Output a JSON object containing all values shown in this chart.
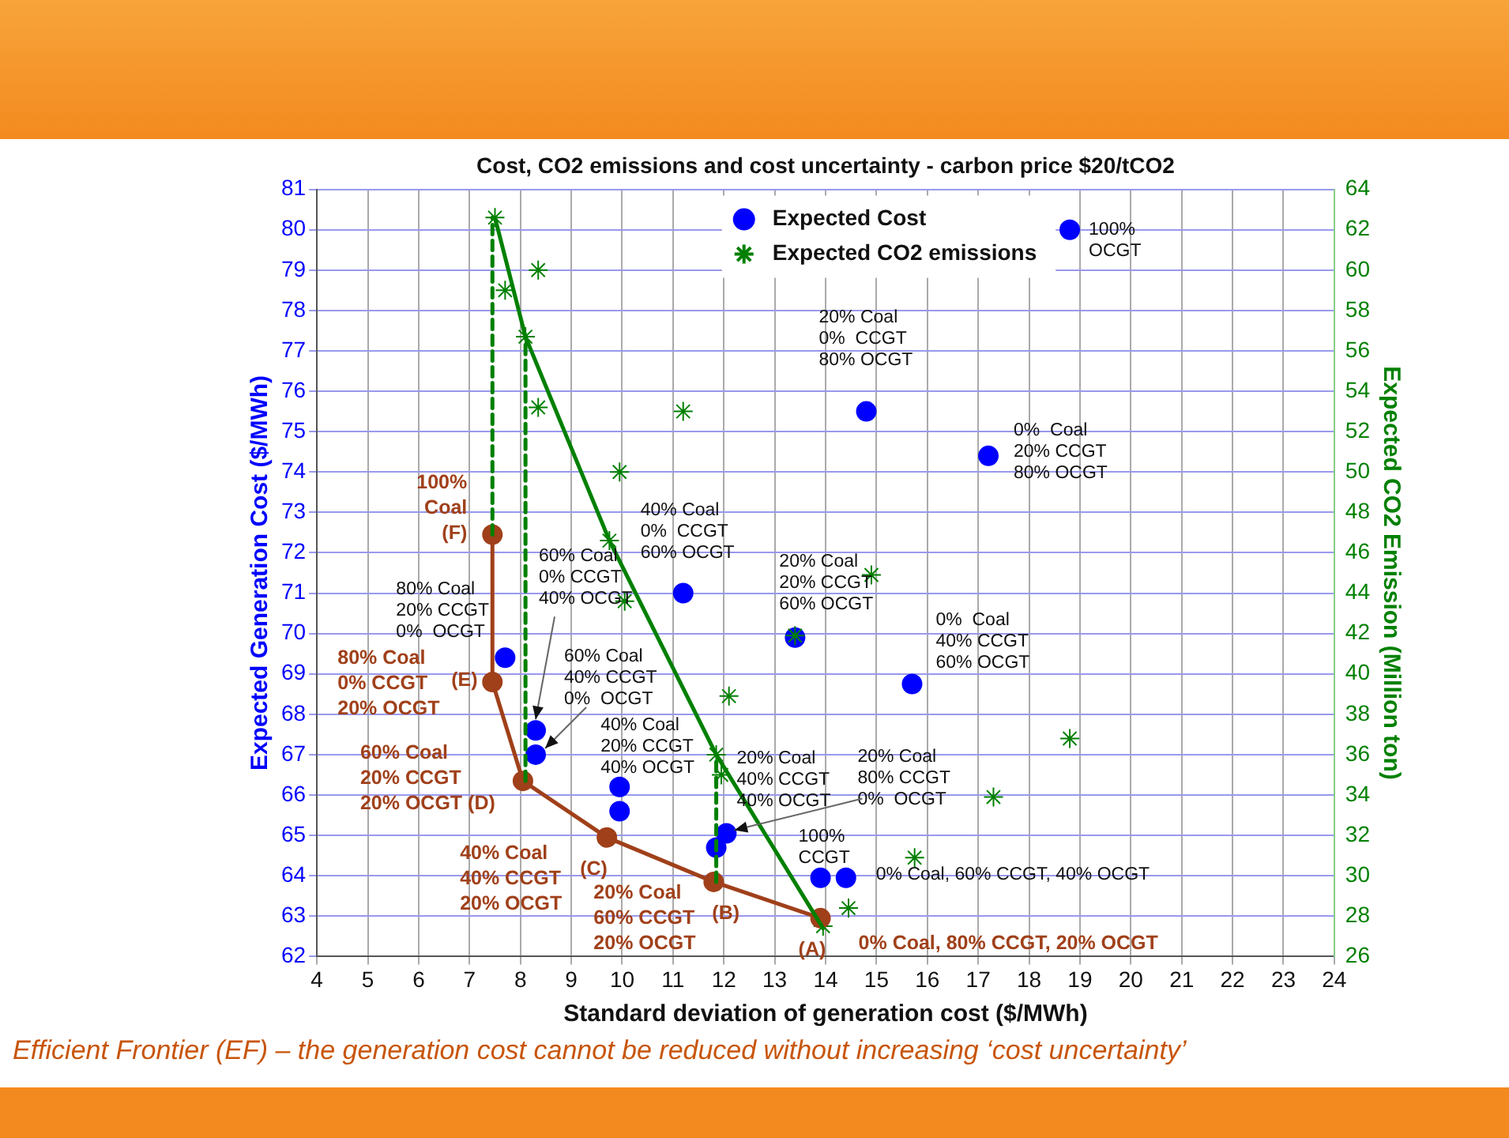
{
  "chart_data": {
    "type": "scatter",
    "title": "Cost, CO2 emissions and cost uncertainty - carbon price $20/tCO2",
    "xlabel": "Standard deviation of generation cost ($/MWh)",
    "ylabel": "Expected Generation Cost ($/MWh)",
    "y2label": "Expected CO2 Emission (Million ton)",
    "xlim": [
      4,
      24
    ],
    "xticks": [
      4,
      5,
      6,
      7,
      8,
      9,
      10,
      11,
      12,
      13,
      14,
      15,
      16,
      17,
      18,
      19,
      20,
      21,
      22,
      23,
      24
    ],
    "ylim": [
      62,
      81
    ],
    "yticks": [
      62,
      63,
      64,
      65,
      66,
      67,
      68,
      69,
      70,
      71,
      72,
      73,
      74,
      75,
      76,
      77,
      78,
      79,
      80,
      81
    ],
    "y2lim": [
      26,
      64
    ],
    "y2ticks": [
      26,
      28,
      30,
      32,
      34,
      36,
      38,
      40,
      42,
      44,
      46,
      48,
      50,
      52,
      54,
      56,
      58,
      60,
      62,
      64
    ],
    "grid": true,
    "legend": "top",
    "series": [
      {
        "name": "Expected Cost",
        "type": "scatter",
        "marker": "circle",
        "color": "#0000ff",
        "x": [
          18.8,
          14.8,
          17.2,
          11.2,
          13.4,
          15.7,
          7.7,
          8.3,
          8.3,
          9.95,
          9.95,
          11.85,
          12.05,
          13.9,
          14.4
        ],
        "values": [
          80.0,
          75.5,
          74.4,
          71.0,
          69.9,
          68.75,
          69.4,
          67.6,
          67.0,
          66.2,
          65.6,
          64.7,
          65.05,
          63.95,
          63.95
        ]
      },
      {
        "name": "Expected CO2 emissions",
        "type": "scatter",
        "marker": "cross",
        "axis": "y2",
        "color": "#008000",
        "x": [
          7.5,
          7.7,
          8.35,
          8.1,
          8.35,
          11.2,
          9.95,
          9.75,
          10.05,
          14.9,
          13.4,
          12.1,
          11.85,
          11.95,
          13.95,
          14.45,
          18.8,
          17.3,
          15.75
        ],
        "values": [
          62.6,
          59.0,
          60.0,
          56.7,
          53.2,
          53.0,
          50.0,
          46.6,
          43.6,
          44.9,
          41.9,
          38.9,
          36.0,
          35.0,
          27.5,
          28.4,
          36.8,
          33.9,
          30.9
        ]
      },
      {
        "type": "line",
        "marker": "circle",
        "color": "#a0401a",
        "x": [
          13.9,
          11.8,
          9.7,
          8.05,
          7.45,
          7.45
        ],
        "values": [
          62.95,
          63.85,
          64.95,
          66.35,
          68.8,
          72.45
        ]
      },
      {
        "type": "line",
        "marker": "none",
        "axis": "y2",
        "color": "#008000",
        "x": [
          7.5,
          8.1,
          9.75,
          11.85,
          13.95
        ],
        "values": [
          62.6,
          56.7,
          46.6,
          36.0,
          27.4
        ]
      },
      {
        "type": "line",
        "marker": "none",
        "line_style": "dashed",
        "axis": "y2",
        "color": "#008000",
        "x": [
          7.45,
          7.45
        ],
        "values": [
          46.9,
          62.6
        ]
      },
      {
        "type": "line",
        "marker": "none",
        "line_style": "dashed",
        "axis": "y2",
        "color": "#008000",
        "x": [
          8.1,
          8.1
        ],
        "values": [
          34.7,
          56.7
        ]
      },
      {
        "type": "line",
        "marker": "none",
        "line_style": "dashed",
        "axis": "y2",
        "color": "#008000",
        "x": [
          11.85,
          11.85
        ],
        "values": [
          29.7,
          36.0
        ]
      }
    ],
    "annotations": [
      {
        "text": "100%\nOCGT",
        "x": 18.8,
        "y": 80.0
      },
      {
        "text": "20% Coal\n0%  CCGT\n80% OCGT",
        "x": 14.8,
        "y": 75.5
      },
      {
        "text": "0%  Coal\n20% CCGT\n80% OCGT",
        "x": 17.2,
        "y": 74.4
      },
      {
        "text": "40% Coal\n0%  CCGT\n60% OCGT",
        "x": 11.2,
        "y": 71.0
      },
      {
        "text": "20% Coal\n20% CCGT\n60% OCGT",
        "x": 13.4,
        "y": 69.9
      },
      {
        "text": "0%  Coal\n40% CCGT\n60% OCGT",
        "x": 15.7,
        "y": 68.75
      },
      {
        "text": "80% Coal\n20% CCGT\n0%  OCGT",
        "x": 7.7,
        "y": 69.4
      },
      {
        "text": "60% Coal\n0% CCGT\n40% OCGT",
        "x": 8.3,
        "y": 67.6
      },
      {
        "text": "60% Coal\n40% CCGT\n0%  OCGT",
        "x": 8.3,
        "y": 67.0
      },
      {
        "text": "40% Coal\n20% CCGT\n40% OCGT",
        "x": 9.95,
        "y": 66.2
      },
      {
        "text": "20% Coal\n40% CCGT\n40% OCGT",
        "x": 11.85,
        "y": 64.7
      },
      {
        "text": "20% Coal\n80% CCGT\n0%  OCGT",
        "x": 12.05,
        "y": 65.05
      },
      {
        "text": "100%\nCCGT",
        "x": 13.9,
        "y": 63.95
      },
      {
        "text": "0% Coal, 60% CCGT, 40% OCGT",
        "x": 14.4,
        "y": 63.95
      },
      {
        "text": "100%\nCoal\n(F)",
        "x": 7.45,
        "y": 72.45
      },
      {
        "text": "80% Coal\n0% CCGT\n20% OCGT",
        "x": 7.45,
        "y": 68.8
      },
      {
        "text": "(E)",
        "x": 7.45,
        "y": 68.8
      },
      {
        "text": "60% Coal\n20% CCGT\n20% OCGT (D)",
        "x": 8.05,
        "y": 66.35
      },
      {
        "text": "40% Coal\n40% CCGT\n20% OCGT",
        "x": 9.7,
        "y": 64.95
      },
      {
        "text": "(C)",
        "x": 9.7,
        "y": 64.95
      },
      {
        "text": "20% Coal\n60% CCGT\n20% OCGT",
        "x": 11.8,
        "y": 63.85
      },
      {
        "text": "(B)",
        "x": 11.8,
        "y": 63.85
      },
      {
        "text": "(A)",
        "x": 13.9,
        "y": 62.95
      },
      {
        "text": "0% Coal, 80% CCGT, 20% OCGT",
        "x": 13.9,
        "y": 62.95
      },
      "Efficient Frontier (EF) – the generation cost cannot be reduced without increasing ‘cost uncertainty’"
    ]
  }
}
